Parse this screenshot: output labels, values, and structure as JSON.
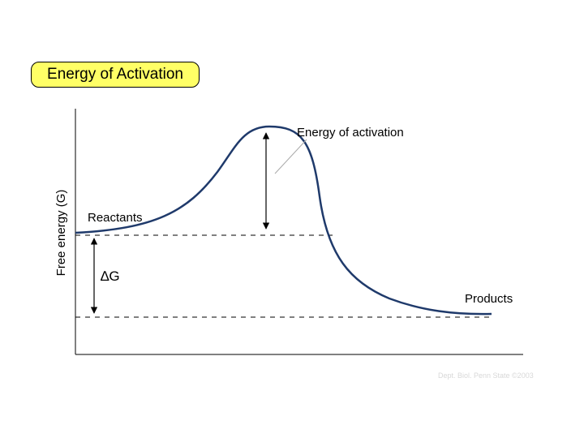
{
  "title": "Energy of Activation",
  "axis": {
    "y_label": "Free energy (G)"
  },
  "labels": {
    "reactants": "Reactants",
    "products": "Products",
    "activation": "Energy of activation",
    "delta_g": "∆G"
  },
  "credit": "Dept. Biol. Penn State ©2003",
  "colors": {
    "curve": "#1f3a6b",
    "title_fill": "#ffff66"
  }
}
